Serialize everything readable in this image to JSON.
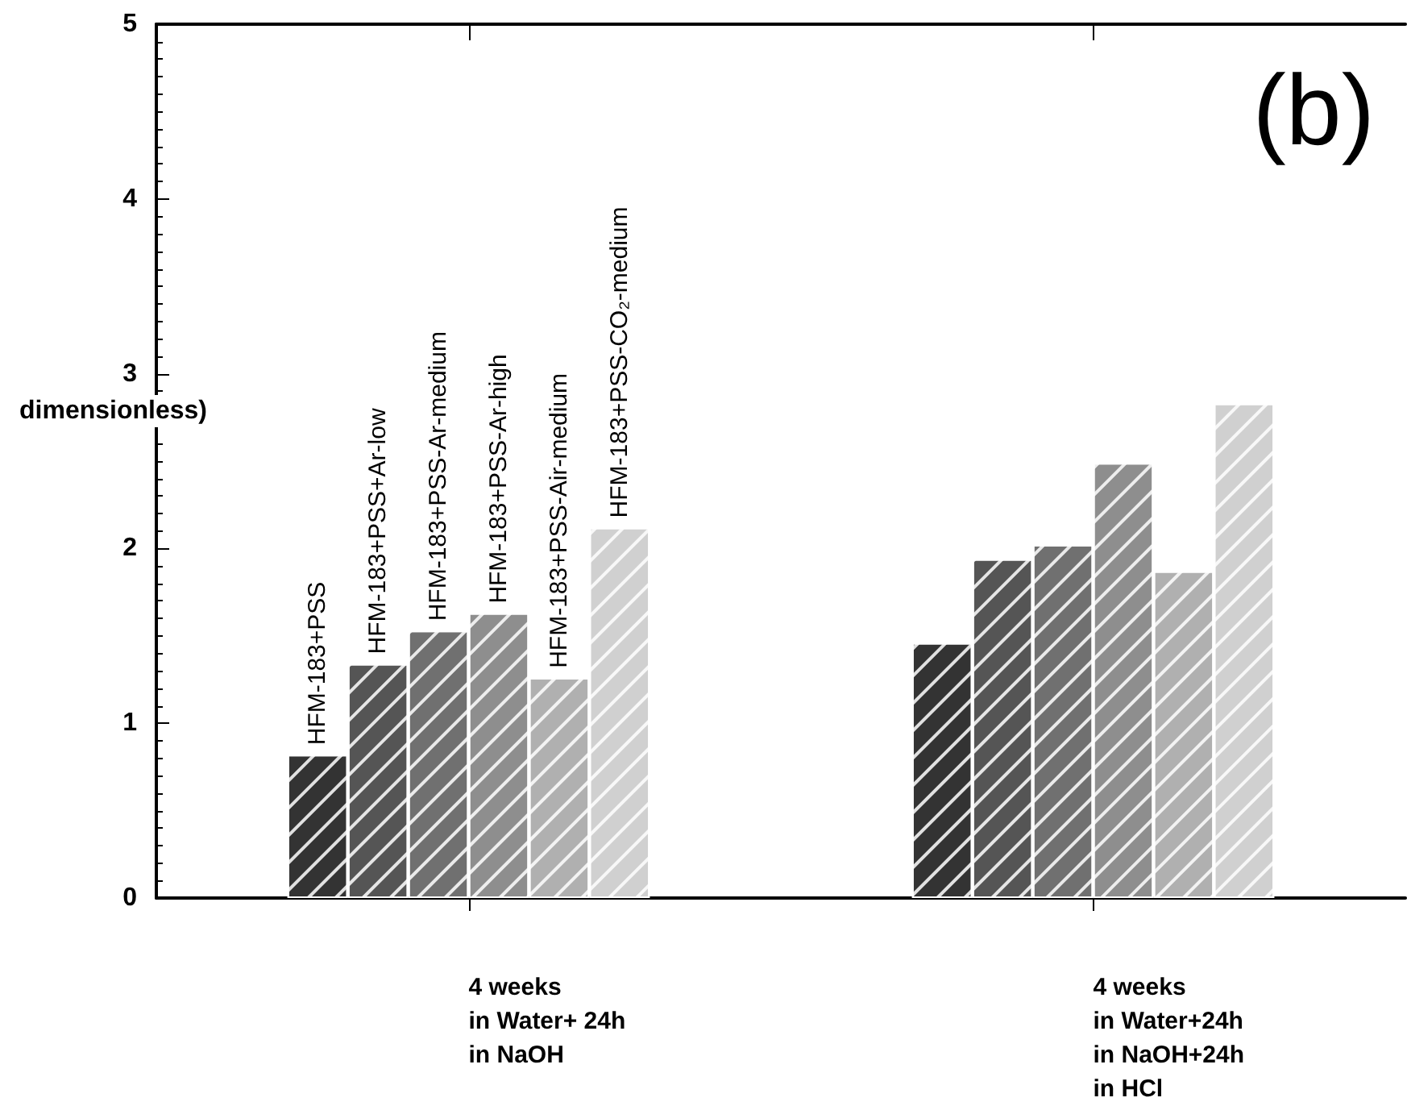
{
  "chart_data": {
    "type": "bar",
    "ylabel": "dimensionless)",
    "annotations": [
      "(b)"
    ],
    "categories": [
      "4 weeks\nin Water+ 24h\nin NaOH",
      "4 weeks\nin Water+24h\nin NaOH+24h\nin HCl"
    ],
    "series": [
      {
        "name": "HFM-183+PSS",
        "color": "#333333",
        "values": [
          0.82,
          1.46
        ]
      },
      {
        "name": "HFM-183+PSS+Ar-low",
        "color": "#555555",
        "values": [
          1.34,
          1.94
        ]
      },
      {
        "name": "HFM-183+PSS-Ar-medium",
        "color": "#707070",
        "values": [
          1.53,
          2.02
        ]
      },
      {
        "name": "HFM-183+PSS-Ar-high",
        "color": "#8e8e8e",
        "values": [
          1.63,
          2.49
        ]
      },
      {
        "name": "HFM-183+PSS-Air-medium",
        "color": "#b0b0b0",
        "values": [
          1.26,
          1.87
        ]
      },
      {
        "name": "HFM-183+PSS-CO₂-medium",
        "color": "#d0d0d0",
        "values": [
          2.12,
          2.83
        ]
      }
    ],
    "ylim": [
      0,
      5
    ],
    "yticks": [
      0,
      1,
      2,
      3,
      4,
      5
    ],
    "grid": false,
    "legend": false
  }
}
